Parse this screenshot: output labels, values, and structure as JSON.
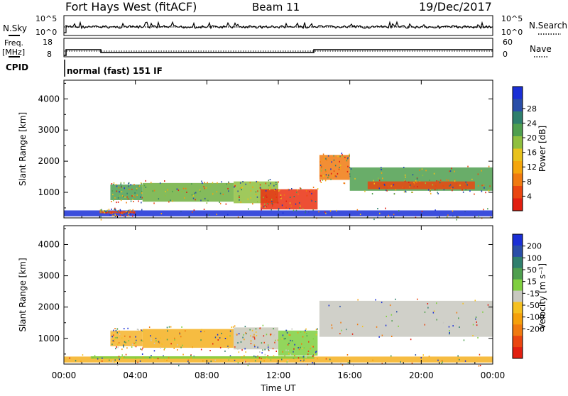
{
  "header": {
    "station": "Fort Hays West (fitACF)",
    "beam": "Beam 11",
    "date": "19/Dec/2017"
  },
  "labels": {
    "nsky": "N.Sky",
    "nsearch": "N.Search",
    "freq_line1": "Freq.",
    "freq_line2": "[MHz]",
    "nave": "Nave",
    "cpid": "CPID",
    "cpid_value": "normal (fast) 151 IF",
    "left_top_hi": "10^5",
    "left_top_lo": "10^0",
    "right_top_hi": "10^5",
    "right_top_lo": "10^0",
    "freq_hi": "18",
    "freq_lo": "8",
    "nave_hi": "60",
    "nave_lo": "0"
  },
  "chart_data": [
    {
      "type": "heatmap",
      "name": "power",
      "ylabel": "Slant Range [km]",
      "ylim": [
        180,
        4600
      ],
      "xlim": [
        0,
        24
      ],
      "xticks": [
        "00:00",
        "04:00",
        "08:00",
        "12:00",
        "16:00",
        "20:00",
        "00:00"
      ],
      "xtick_values": [
        0,
        4,
        8,
        12,
        16,
        20,
        24
      ],
      "yticks": [
        1000,
        2000,
        3000,
        4000
      ],
      "colorbar": {
        "label": "Power [dB]",
        "ticks": [
          "4",
          "8",
          "12",
          "16",
          "20",
          "24",
          "28"
        ],
        "colors": [
          "#1a2fd6",
          "#2a4ea8",
          "#2f7f6d",
          "#4f9f4f",
          "#8fbf3f",
          "#e8c21c",
          "#f5a60c",
          "#f07a10",
          "#ea4610",
          "#e21f10"
        ]
      },
      "regions": [
        {
          "t0": 2.6,
          "t1": 4.4,
          "r0": 750,
          "r1": 1250,
          "color": "#4f9f4f"
        },
        {
          "t0": 4.4,
          "t1": 9.5,
          "r0": 700,
          "r1": 1300,
          "color": "#6faf3f"
        },
        {
          "t0": 9.5,
          "t1": 12.0,
          "r0": 650,
          "r1": 1350,
          "color": "#8fbf3f"
        },
        {
          "t0": 11.0,
          "t1": 14.2,
          "r0": 450,
          "r1": 1100,
          "color": "#ea3010"
        },
        {
          "t0": 14.3,
          "t1": 16.0,
          "r0": 1400,
          "r1": 2200,
          "color": "#f07a10"
        },
        {
          "t0": 16.0,
          "t1": 24.0,
          "r0": 1050,
          "r1": 1800,
          "color": "#4f9f4f"
        },
        {
          "t0": 17.0,
          "t1": 23.0,
          "r0": 1100,
          "r1": 1350,
          "color": "#ea4610"
        },
        {
          "t0": 0.0,
          "t1": 24.0,
          "r0": 230,
          "r1": 420,
          "color": "#1a2fd6"
        },
        {
          "t0": 2.0,
          "t1": 4.0,
          "r0": 330,
          "r1": 400,
          "color": "#ea4610"
        }
      ]
    },
    {
      "type": "heatmap",
      "name": "velocity",
      "ylabel": "Slant Range [km]",
      "xlabel": "Time UT",
      "ylim": [
        180,
        4600
      ],
      "xlim": [
        0,
        24
      ],
      "xticks": [
        "00:00",
        "04:00",
        "08:00",
        "12:00",
        "16:00",
        "20:00",
        "00:00"
      ],
      "xtick_values": [
        0,
        4,
        8,
        12,
        16,
        20,
        24
      ],
      "yticks": [
        1000,
        2000,
        3000,
        4000
      ],
      "colorbar": {
        "label": "Velocity [m s⁻¹]",
        "ticks": [
          "200",
          "100",
          "50",
          "15",
          "-15",
          "-50",
          "-100",
          "-200"
        ],
        "colors": [
          "#1a2fd6",
          "#2a4ea8",
          "#2f7f6d",
          "#4f9f4f",
          "#7fcf3f",
          "#c8c8c0",
          "#f5c020",
          "#f5a00c",
          "#f07a10",
          "#ea4610",
          "#e21f10"
        ]
      },
      "regions": [
        {
          "t0": 2.6,
          "t1": 4.4,
          "r0": 750,
          "r1": 1250,
          "color": "#f5b42c"
        },
        {
          "t0": 4.4,
          "t1": 9.5,
          "r0": 700,
          "r1": 1300,
          "color": "#f5b020"
        },
        {
          "t0": 9.5,
          "t1": 12.0,
          "r0": 650,
          "r1": 1350,
          "color": "#c8c8b8"
        },
        {
          "t0": 12.0,
          "t1": 14.2,
          "r0": 450,
          "r1": 1250,
          "color": "#7fcf3f"
        },
        {
          "t0": 14.3,
          "t1": 24.0,
          "r0": 1050,
          "r1": 2200,
          "color": "#c8c8c0"
        },
        {
          "t0": 0.0,
          "t1": 24.0,
          "r0": 230,
          "r1": 420,
          "color": "#f5b020"
        },
        {
          "t0": 1.5,
          "t1": 14.0,
          "r0": 350,
          "r1": 430,
          "color": "#7fcf3f"
        }
      ]
    }
  ]
}
